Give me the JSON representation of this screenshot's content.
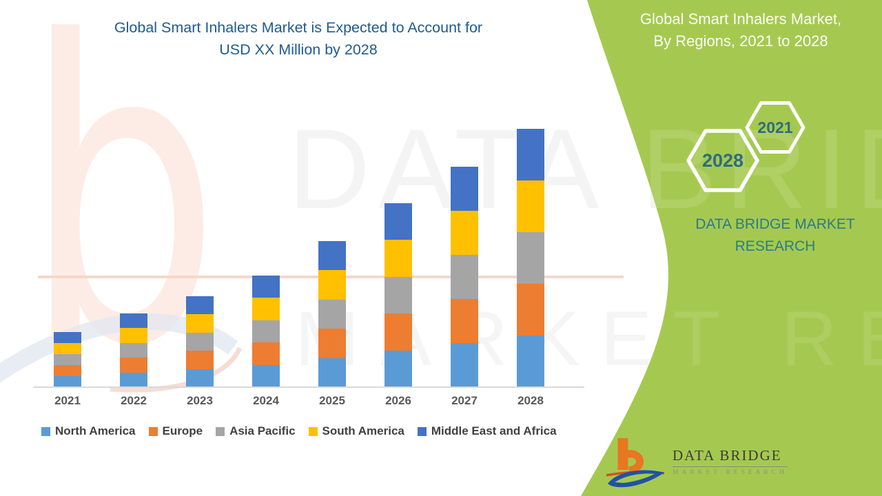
{
  "title": {
    "line1": "Global Smart Inhalers Market is Expected to Account for",
    "line2": "USD XX Million by 2028"
  },
  "side_panel": {
    "heading_line1": "Global Smart Inhalers Market,",
    "heading_line2": "By Regions, 2021 to 2028",
    "hexagons": [
      {
        "label": "2028"
      },
      {
        "label": "2021"
      }
    ],
    "brand_line1": "DATA BRIDGE MARKET",
    "brand_line2": "RESEARCH",
    "bg_color": "#A5C950",
    "heading_color": "#FDFEF6",
    "accent_text_color": "#2C7A8C"
  },
  "watermark": {
    "letter": "b",
    "line1": "DATA BRIDGE",
    "line2": "MARKET RESEARCH"
  },
  "footer_logo": {
    "title": "DATA BRIDGE",
    "subtitle": "MARKET RESEARCH",
    "b_color": "#E87722",
    "swirl_color": "#2152A3"
  },
  "chart_data": {
    "type": "bar",
    "stacked": true,
    "title": "Global Smart Inhalers Market is Expected to Account for USD XX Million by 2028",
    "xlabel": "",
    "ylabel": "",
    "units": "USD Million (actual values masked as XX; segment values are relative estimates from bar heights)",
    "categories": [
      "2021",
      "2022",
      "2023",
      "2024",
      "2025",
      "2026",
      "2027",
      "2028"
    ],
    "series": [
      {
        "name": "North America",
        "color": "#5B9BD5",
        "values": [
          16,
          21.5,
          26.5,
          32.5,
          42.5,
          53.5,
          64,
          75
        ]
      },
      {
        "name": "Europe",
        "color": "#ED7D31",
        "values": [
          16,
          21.5,
          26.5,
          32.5,
          42.5,
          53.5,
          64,
          75
        ]
      },
      {
        "name": "Asia Pacific",
        "color": "#A5A5A5",
        "values": [
          16,
          21.5,
          26.5,
          32.5,
          42.5,
          53.5,
          64,
          75
        ]
      },
      {
        "name": "South America",
        "color": "#FFC000",
        "values": [
          16,
          21.5,
          26.5,
          32.5,
          42.5,
          53.5,
          64,
          75
        ]
      },
      {
        "name": "Middle East and Africa",
        "color": "#4472C4",
        "values": [
          16,
          21.5,
          26.5,
          32.5,
          42.5,
          53.5,
          64,
          75
        ]
      }
    ],
    "totals": [
      80,
      107.5,
      132.5,
      162.5,
      212.5,
      267.5,
      320,
      375
    ],
    "ylim": [
      0,
      380
    ],
    "grid": false,
    "y_axis_visible": false,
    "legend_position": "bottom",
    "note": "Each year's bar splits into five approximately equal regional segments; no numeric axis shown."
  }
}
